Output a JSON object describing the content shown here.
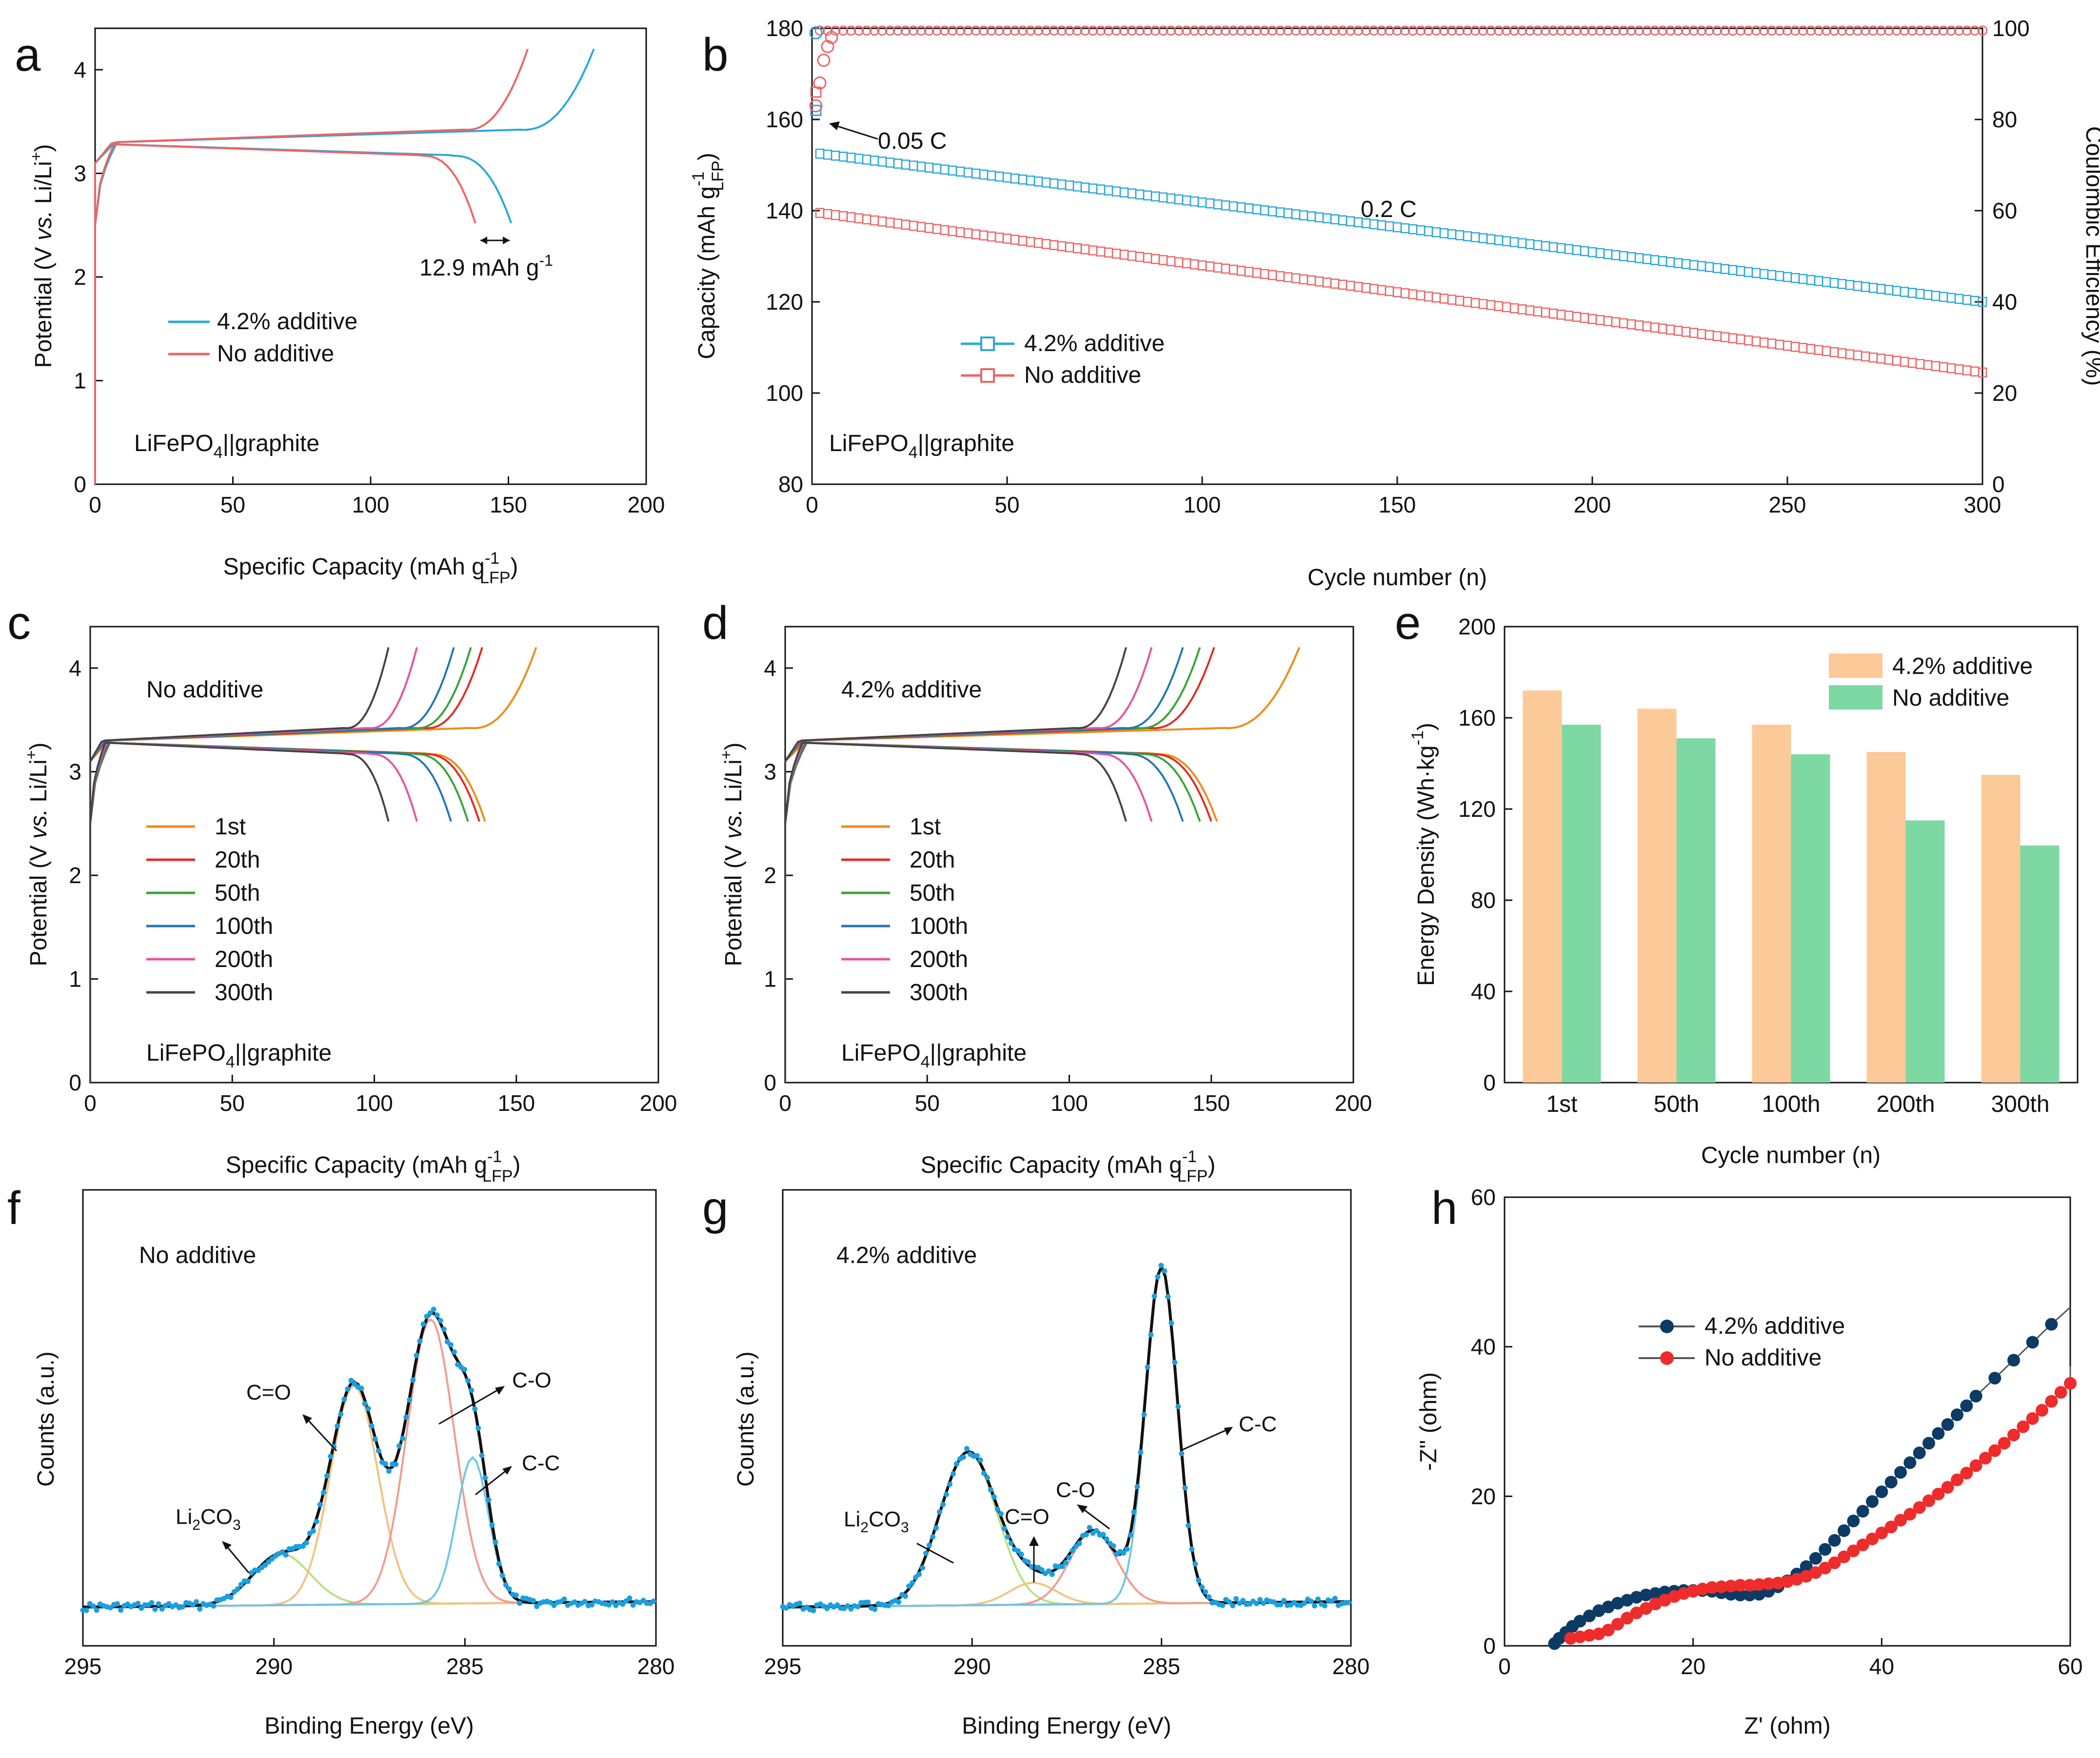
{
  "colors": {
    "additive": "#29a8d8",
    "no_additive": "#ee6466",
    "c1": "#f08a16",
    "c20": "#e52a21",
    "c50": "#36a336",
    "c100": "#1f77b4",
    "c200": "#e7529f",
    "c300": "#444444",
    "bar_additive": "#fcc998",
    "bar_no_additive": "#7ed8a3",
    "fit_li2co3": "#b7e07a",
    "fit_co_double": "#f4c27d",
    "fit_co_single": "#f39a8e",
    "fit_cc": "#6ec6e6",
    "baseline": "#8b1a1a",
    "eis_additive": "#0d3b66",
    "eis_no_additive": "#ee2c2c"
  },
  "chart_data": [
    {
      "id": "a",
      "panel_label": "a",
      "type": "line",
      "xlabel": "Specific Capacity (mAh g",
      "xlabel_sup": "-1",
      "xlabel_sub": "LFP",
      "xlabel_end": ")",
      "ylabel": "Potential (V vs. Li/Li+)",
      "xlim": [
        0,
        200
      ],
      "ylim": [
        0,
        4.4
      ],
      "xticks": [
        "0",
        "50",
        "100",
        "150",
        "200"
      ],
      "yticks": [
        "0",
        "1",
        "2",
        "3",
        "4"
      ],
      "legend": [
        "4.2% additive",
        "No additive"
      ],
      "note": "LiFePO4||graphite",
      "annotation": "12.9 mAh g",
      "annotation_sup": "-1",
      "series": [
        {
          "name": "4.2% additive",
          "charge_end": 181,
          "discharge_end": 151
        },
        {
          "name": "No additive",
          "charge_end": 157,
          "discharge_end": 138
        }
      ]
    },
    {
      "id": "b",
      "panel_label": "b",
      "type": "scatter",
      "xlabel": "Cycle number (n)",
      "ylabel": "Capacity (mAh g-1 LFP)",
      "ylabel_main": "Capacity (mAh g",
      "ylabel_sup": "-1",
      "ylabel_sub": "LFP",
      "ylabel_end": ")",
      "y2label": "Coulombic Efficiency (%)",
      "xlim": [
        0,
        300
      ],
      "ylim": [
        80,
        180
      ],
      "y2lim": [
        0,
        100
      ],
      "xticks": [
        "0",
        "50",
        "100",
        "150",
        "200",
        "250",
        "300"
      ],
      "yticks": [
        "80",
        "100",
        "120",
        "140",
        "160",
        "180"
      ],
      "y2ticks": [
        "0",
        "20",
        "40",
        "60",
        "80",
        "100"
      ],
      "legend": [
        "4.2% additive",
        "No additive"
      ],
      "annotations": [
        "0.05 C",
        "0.2 C"
      ],
      "note": "LiFePO4||graphite",
      "series": [
        {
          "name": "4.2% additive",
          "first_cycle": 162,
          "start": 152.5,
          "end": 120,
          "ce": 99.5
        },
        {
          "name": "No additive",
          "first_cycle": 166,
          "start": 139.5,
          "end": 104.5,
          "ce": 99.5
        }
      ]
    },
    {
      "id": "c",
      "panel_label": "c",
      "type": "line",
      "xlabel": "Specific Capacity (mAh g",
      "xlabel_sup": "-1",
      "xlabel_sub": "LFP",
      "xlabel_end": ")",
      "ylabel": "Potential (V vs. Li/Li+)",
      "xlim": [
        0,
        200
      ],
      "ylim": [
        0,
        4.4
      ],
      "xticks": [
        "0",
        "50",
        "100",
        "150",
        "200"
      ],
      "yticks": [
        "0",
        "1",
        "2",
        "3",
        "4"
      ],
      "title": "No additive",
      "note": "LiFePO4||graphite",
      "legend": [
        "1st",
        "20th",
        "50th",
        "100th",
        "200th",
        "300th"
      ],
      "series": [
        {
          "name": "1st",
          "charge_end": 157,
          "discharge_end": 139
        },
        {
          "name": "20th",
          "charge_end": 138,
          "discharge_end": 137
        },
        {
          "name": "50th",
          "charge_end": 134,
          "discharge_end": 133
        },
        {
          "name": "100th",
          "charge_end": 128,
          "discharge_end": 127
        },
        {
          "name": "200th",
          "charge_end": 115,
          "discharge_end": 115
        },
        {
          "name": "300th",
          "charge_end": 105,
          "discharge_end": 105
        }
      ]
    },
    {
      "id": "d",
      "panel_label": "d",
      "type": "line",
      "xlabel": "Specific Capacity (mAh g",
      "xlabel_sup": "-1",
      "xlabel_sub": "LFP",
      "xlabel_end": ")",
      "ylabel": "Potential (V vs. Li/Li+)",
      "xlim": [
        0,
        200
      ],
      "ylim": [
        0,
        4.4
      ],
      "xticks": [
        "0",
        "50",
        "100",
        "150",
        "200"
      ],
      "yticks": [
        "0",
        "1",
        "2",
        "3",
        "4"
      ],
      "title": "4.2% additive",
      "note": "LiFePO4||graphite",
      "legend": [
        "1st",
        "20th",
        "50th",
        "100th",
        "200th",
        "300th"
      ],
      "series": [
        {
          "name": "1st",
          "charge_end": 181,
          "discharge_end": 152
        },
        {
          "name": "20th",
          "charge_end": 151,
          "discharge_end": 150
        },
        {
          "name": "50th",
          "charge_end": 146,
          "discharge_end": 146
        },
        {
          "name": "100th",
          "charge_end": 140,
          "discharge_end": 140
        },
        {
          "name": "200th",
          "charge_end": 129,
          "discharge_end": 129
        },
        {
          "name": "300th",
          "charge_end": 120,
          "discharge_end": 120
        }
      ]
    },
    {
      "id": "e",
      "panel_label": "e",
      "type": "bar",
      "xlabel": "Cycle number (n)",
      "ylabel": "Energy Density (Wh·kg-1)",
      "ylabel_main": "Energy Density (Wh·kg",
      "ylabel_sup": "-1",
      "ylabel_end": ")",
      "categories": [
        "1st",
        "50th",
        "100th",
        "200th",
        "300th"
      ],
      "ylim": [
        0,
        200
      ],
      "yticks": [
        "0",
        "40",
        "80",
        "120",
        "160",
        "200"
      ],
      "legend": [
        "4.2% additive",
        "No additive"
      ],
      "series": [
        {
          "name": "4.2% additive",
          "values": [
            172,
            164,
            157,
            145,
            135
          ]
        },
        {
          "name": "No additive",
          "values": [
            157,
            151,
            144,
            115,
            104
          ]
        }
      ]
    },
    {
      "id": "f",
      "panel_label": "f",
      "type": "line",
      "xlabel": "Binding Energy (eV)",
      "ylabel": "Counts (a.u.)",
      "xlim": [
        295,
        280
      ],
      "xticks": [
        "295",
        "290",
        "285",
        "280"
      ],
      "title": "No additive",
      "peaks": [
        {
          "name": "Li2CO3",
          "center": 289.8,
          "height": 0.14
        },
        {
          "name": "C=O",
          "center": 287.9,
          "height": 0.6
        },
        {
          "name": "C-O",
          "center": 285.9,
          "height": 0.78
        },
        {
          "name": "C-C",
          "center": 284.8,
          "height": 0.4
        }
      ],
      "labels": {
        "li2co3_main": "Li",
        "li2co3_sub1": "2",
        "li2co3_mid": "CO",
        "li2co3_sub2": "3",
        "co_double": "C=O",
        "co_single": "C-O",
        "cc": "C-C"
      }
    },
    {
      "id": "g",
      "panel_label": "g",
      "type": "line",
      "xlabel": "Binding Energy (eV)",
      "ylabel": "Counts (a.u.)",
      "xlim": [
        295,
        280
      ],
      "xticks": [
        "295",
        "290",
        "285",
        "280"
      ],
      "title": "4.2% additive",
      "peaks": [
        {
          "name": "Li2CO3",
          "center": 290.1,
          "height": 0.42
        },
        {
          "name": "C=O",
          "center": 288.4,
          "height": 0.06
        },
        {
          "name": "C-O",
          "center": 286.8,
          "height": 0.2
        },
        {
          "name": "C-C",
          "center": 285.0,
          "height": 0.92
        }
      ],
      "labels": {
        "li2co3_main": "Li",
        "li2co3_sub1": "2",
        "li2co3_mid": "CO",
        "li2co3_sub2": "3",
        "co_double": "C=O",
        "co_single": "C-O",
        "cc": "C-C"
      }
    },
    {
      "id": "h",
      "panel_label": "h",
      "type": "scatter",
      "xlabel": "Z' (ohm)",
      "ylabel": "-Z'' (ohm)",
      "xlim": [
        0,
        60
      ],
      "ylim": [
        0,
        60
      ],
      "xticks": [
        "0",
        "20",
        "40",
        "60"
      ],
      "yticks": [
        "0",
        "20",
        "40",
        "60"
      ],
      "legend": [
        "4.2% additive",
        "No additive"
      ],
      "series": [
        {
          "name": "4.2% additive",
          "x": [
            5.3,
            5.8,
            6.5,
            7.2,
            8,
            9,
            10,
            11,
            12,
            13,
            14,
            15,
            16,
            17,
            18,
            19,
            20,
            21,
            22,
            23,
            24,
            25,
            26,
            27,
            28,
            29,
            30,
            31,
            32,
            33,
            34,
            35,
            36,
            37,
            38,
            39,
            40,
            41,
            42,
            43,
            44,
            45,
            46,
            47,
            48,
            49,
            50,
            52,
            54,
            56,
            58
          ],
          "y": [
            0.3,
            1,
            1.8,
            2.6,
            3.3,
            4,
            4.7,
            5.2,
            5.7,
            6.1,
            6.5,
            6.8,
            7,
            7.2,
            7.3,
            7.4,
            7.4,
            7.4,
            7.3,
            7.1,
            6.9,
            6.8,
            6.8,
            6.9,
            7.3,
            7.9,
            8.7,
            9.6,
            10.6,
            11.7,
            12.9,
            14.1,
            15.4,
            16.7,
            18,
            19.3,
            20.6,
            21.9,
            23.2,
            24.5,
            25.8,
            27.1,
            28.4,
            29.6,
            30.9,
            32.1,
            33.4,
            35.8,
            38.2,
            40.6,
            43
          ]
        },
        {
          "name": "No additive",
          "x": [
            7,
            8,
            9,
            10,
            11,
            12,
            13,
            14,
            15,
            16,
            17,
            18,
            19,
            20,
            21,
            22,
            23,
            24,
            25,
            26,
            27,
            28,
            29,
            30,
            31,
            32,
            33,
            34,
            35,
            36,
            37,
            38,
            39,
            40,
            41,
            42,
            43,
            44,
            45,
            46,
            47,
            48,
            49,
            50,
            51,
            52,
            53,
            54,
            55,
            56,
            57,
            58,
            59,
            60
          ],
          "y": [
            1,
            1.2,
            1.4,
            1.6,
            2.1,
            2.9,
            3.7,
            4.4,
            5,
            5.6,
            6.1,
            6.6,
            7,
            7.3,
            7.6,
            7.8,
            7.9,
            8,
            8.1,
            8.1,
            8.2,
            8.3,
            8.4,
            8.6,
            8.9,
            9.3,
            9.8,
            10.4,
            11.1,
            11.9,
            12.7,
            13.5,
            14.3,
            15.1,
            15.9,
            16.8,
            17.6,
            18.5,
            19.4,
            20.3,
            21.2,
            22.2,
            23.1,
            24.1,
            25.1,
            26.1,
            27.1,
            28.2,
            29.3,
            30.4,
            31.5,
            32.7,
            33.9,
            35.1
          ]
        }
      ]
    }
  ]
}
